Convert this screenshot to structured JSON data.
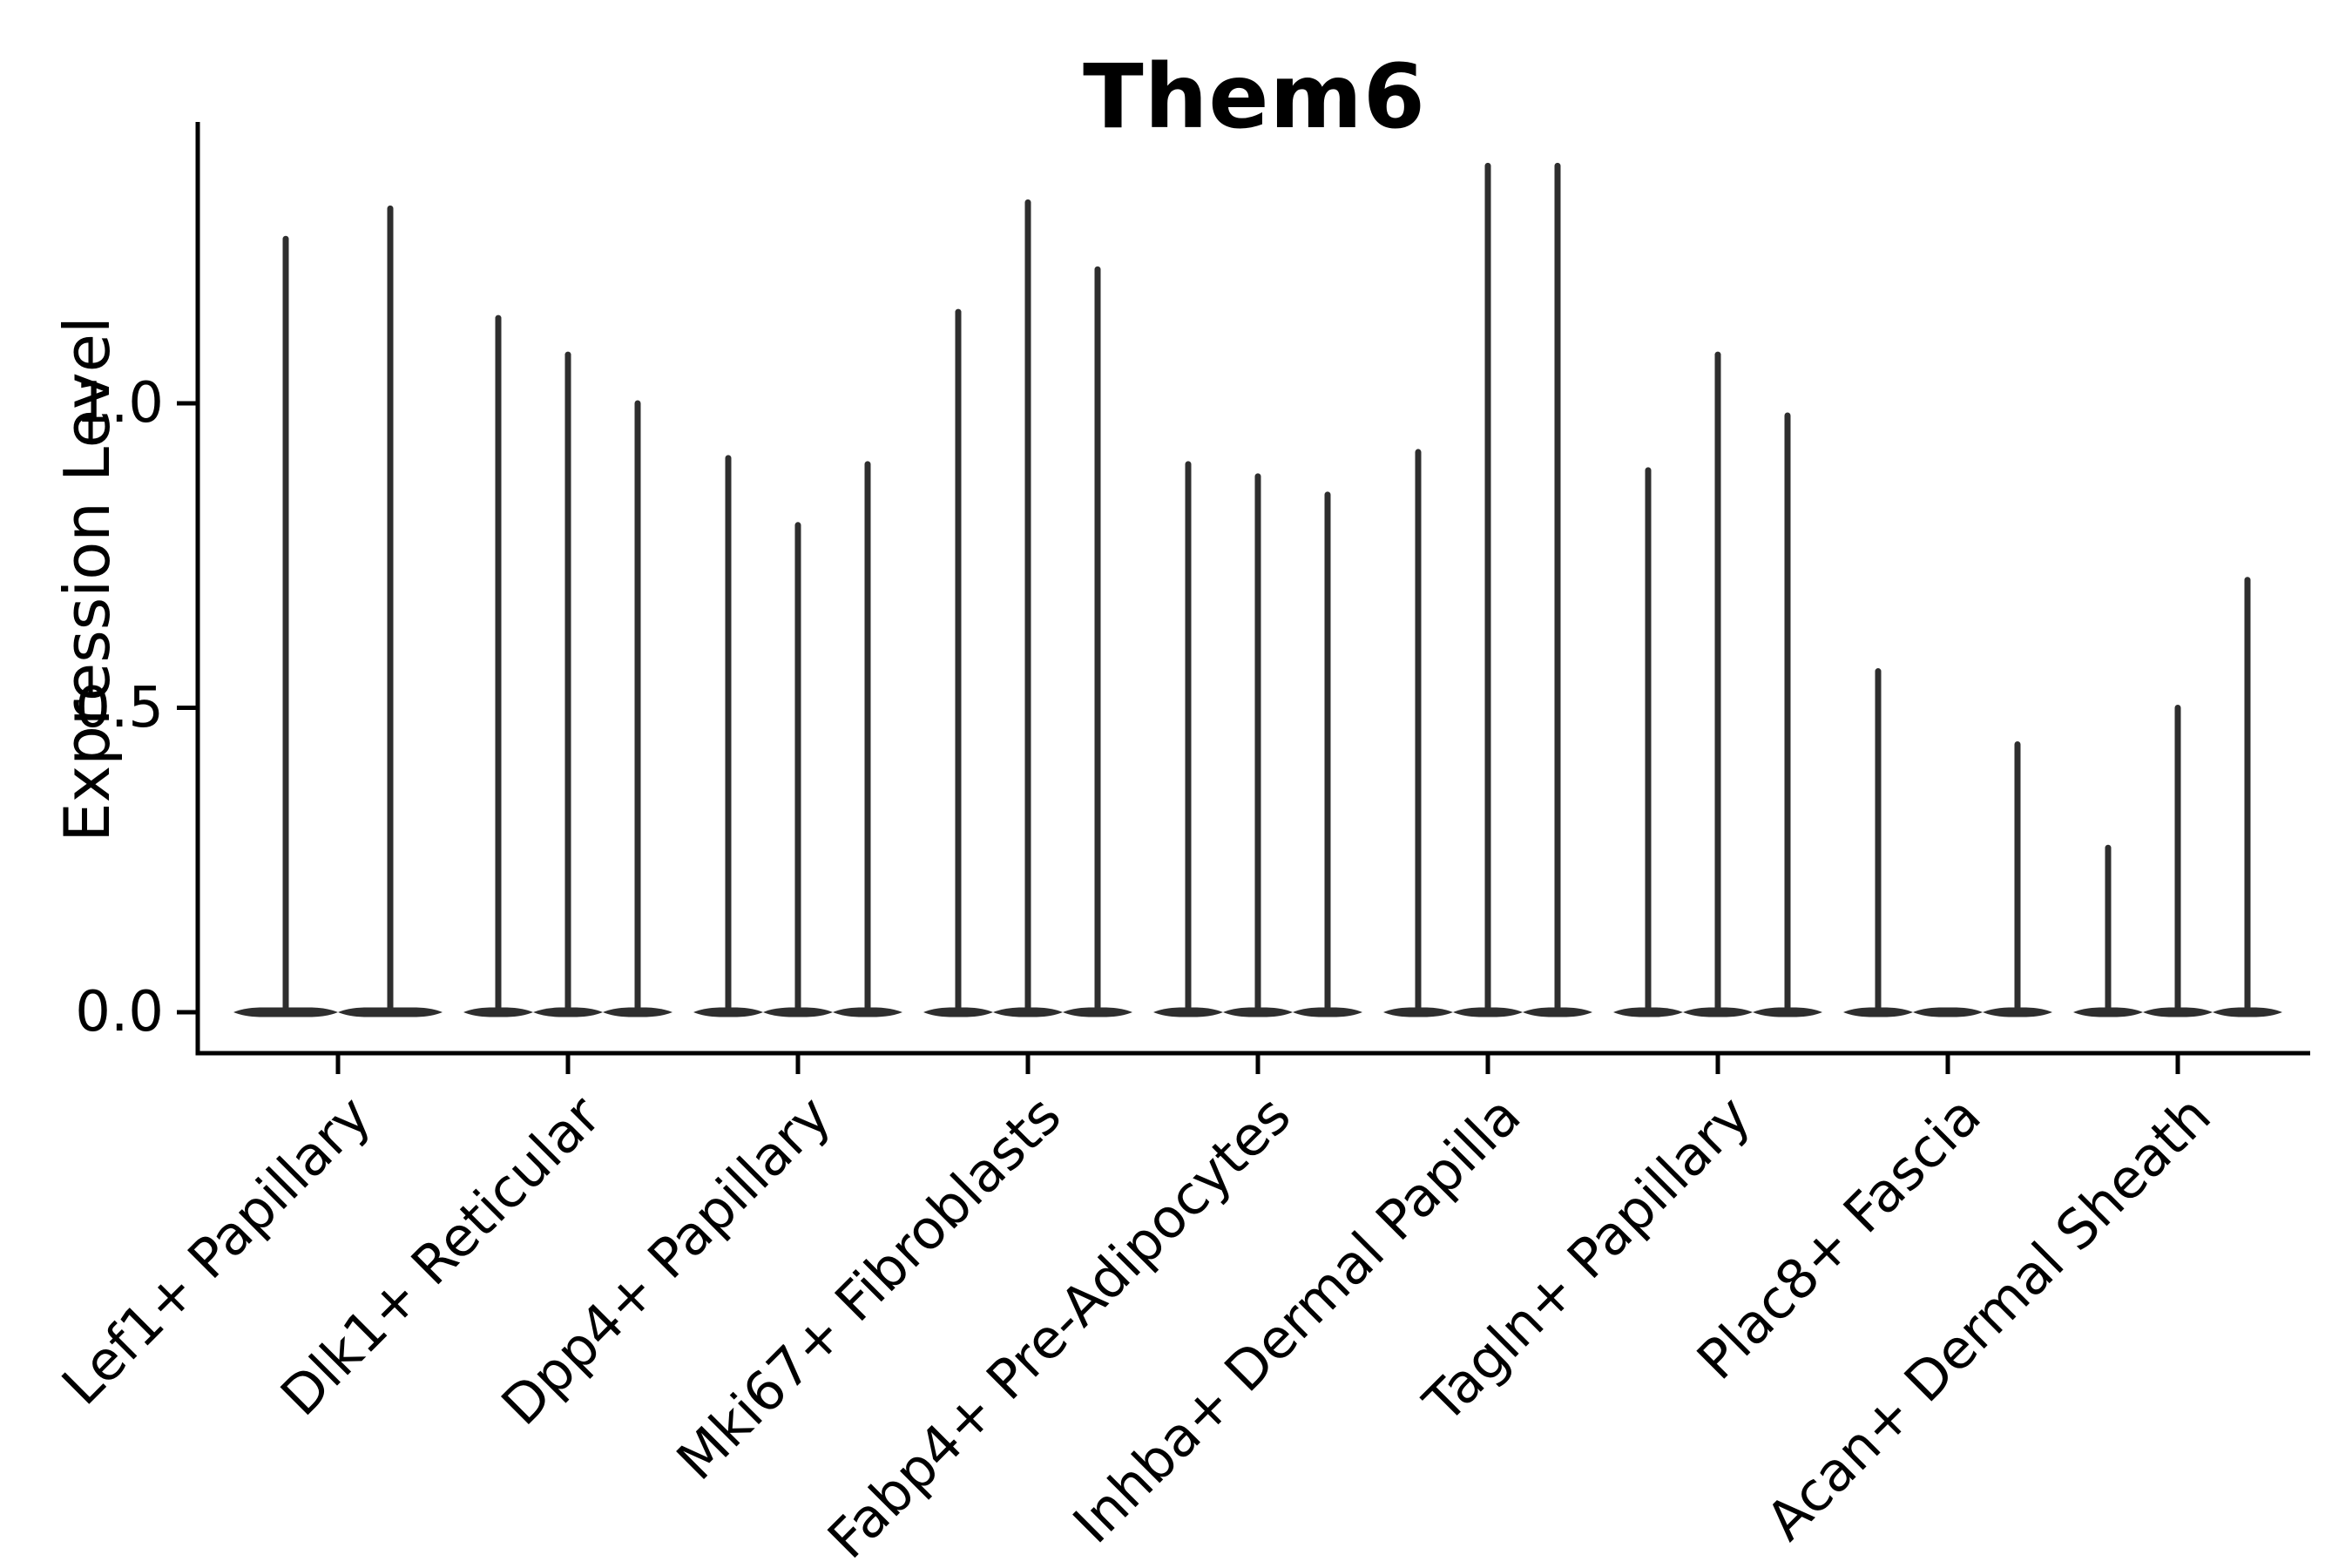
{
  "title": "Them6",
  "axes": {
    "ylabel": "Expression Level",
    "ytick_labels": [
      "0.0",
      "0.5",
      "1.0"
    ]
  },
  "chart_data": {
    "type": "violin",
    "title": "Them6",
    "xlabel": "",
    "ylabel": "Expression Level",
    "yticks": [
      0.0,
      0.5,
      1.0
    ],
    "ylim": [
      -0.07,
      1.46
    ],
    "grid": false,
    "legend": "none",
    "description": "Split violin plot of Them6 expression; each violin is flat at 0 with a thin density spike whose top marks the maximum expression level",
    "categories": [
      "Lef1+ Papillary",
      "Dlk1+ Reticular",
      "Dpp4+ Papillary",
      "Mki67+ Fibroblasts",
      "Fabp4+ Pre-Adipocytes",
      "Inhba+ Dermal Papilla",
      "Tagln+ Papillary",
      "Plac8+ Fascia",
      "Acan+ Dermal Sheath"
    ],
    "violins": [
      {
        "category": "Lef1+ Papillary",
        "spike_peaks": [
          1.27,
          1.32
        ]
      },
      {
        "category": "Dlk1+ Reticular",
        "spike_peaks": [
          1.14,
          1.08,
          1.0
        ]
      },
      {
        "category": "Dpp4+ Papillary",
        "spike_peaks": [
          0.91,
          0.8,
          0.9
        ]
      },
      {
        "category": "Mki67+ Fibroblasts",
        "spike_peaks": [
          1.15,
          1.33,
          1.22
        ]
      },
      {
        "category": "Fabp4+ Pre-Adipocytes",
        "spike_peaks": [
          0.9,
          0.88,
          0.85
        ]
      },
      {
        "category": "Inhba+ Dermal Papilla",
        "spike_peaks": [
          0.92,
          1.39,
          1.39
        ]
      },
      {
        "category": "Tagln+ Papillary",
        "spike_peaks": [
          0.89,
          1.08,
          0.98
        ]
      },
      {
        "category": "Plac8+ Fascia",
        "spike_peaks": [
          0.56,
          0.0,
          0.44
        ]
      },
      {
        "category": "Acan+ Dermal Sheath",
        "spike_peaks": [
          0.27,
          0.5,
          0.71
        ]
      }
    ],
    "colors": {
      "violin": "#2e2e2e",
      "axis": "#000000",
      "text": "#000000",
      "background": "#ffffff"
    }
  }
}
